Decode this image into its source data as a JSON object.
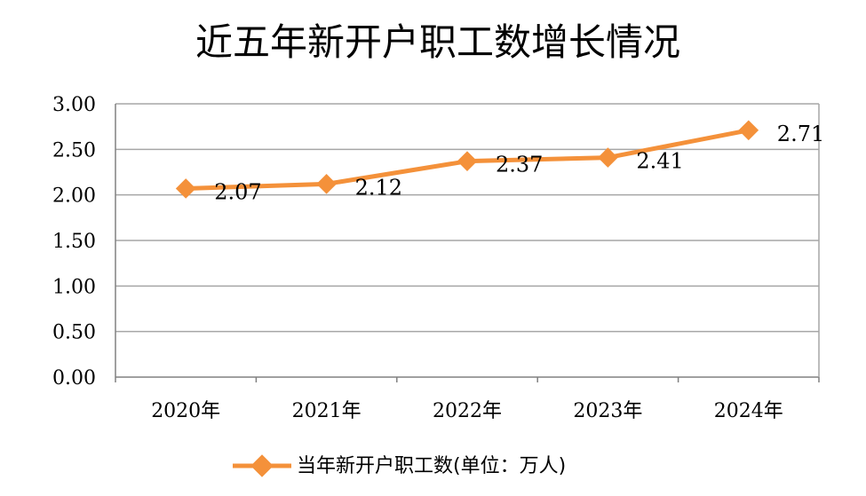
{
  "chart_data": {
    "type": "line",
    "title": "近五年新开户职工数增长情况",
    "categories": [
      "2020年",
      "2021年",
      "2022年",
      "2023年",
      "2024年"
    ],
    "series": [
      {
        "name": "当年新开户职工数(单位：万人)",
        "values": [
          2.07,
          2.12,
          2.37,
          2.41,
          2.71
        ],
        "data_labels": [
          "2.07",
          "2.12",
          "2.37",
          "2.41",
          "2.71"
        ],
        "color": "#F4913A"
      }
    ],
    "y_ticks": [
      "0.00",
      "0.50",
      "1.00",
      "1.50",
      "2.00",
      "2.50",
      "3.00"
    ],
    "ylim": [
      0,
      3
    ],
    "grid": true,
    "legend_position": "bottom",
    "gridline_color": "#A6A6A6",
    "axis_color": "#808080"
  }
}
